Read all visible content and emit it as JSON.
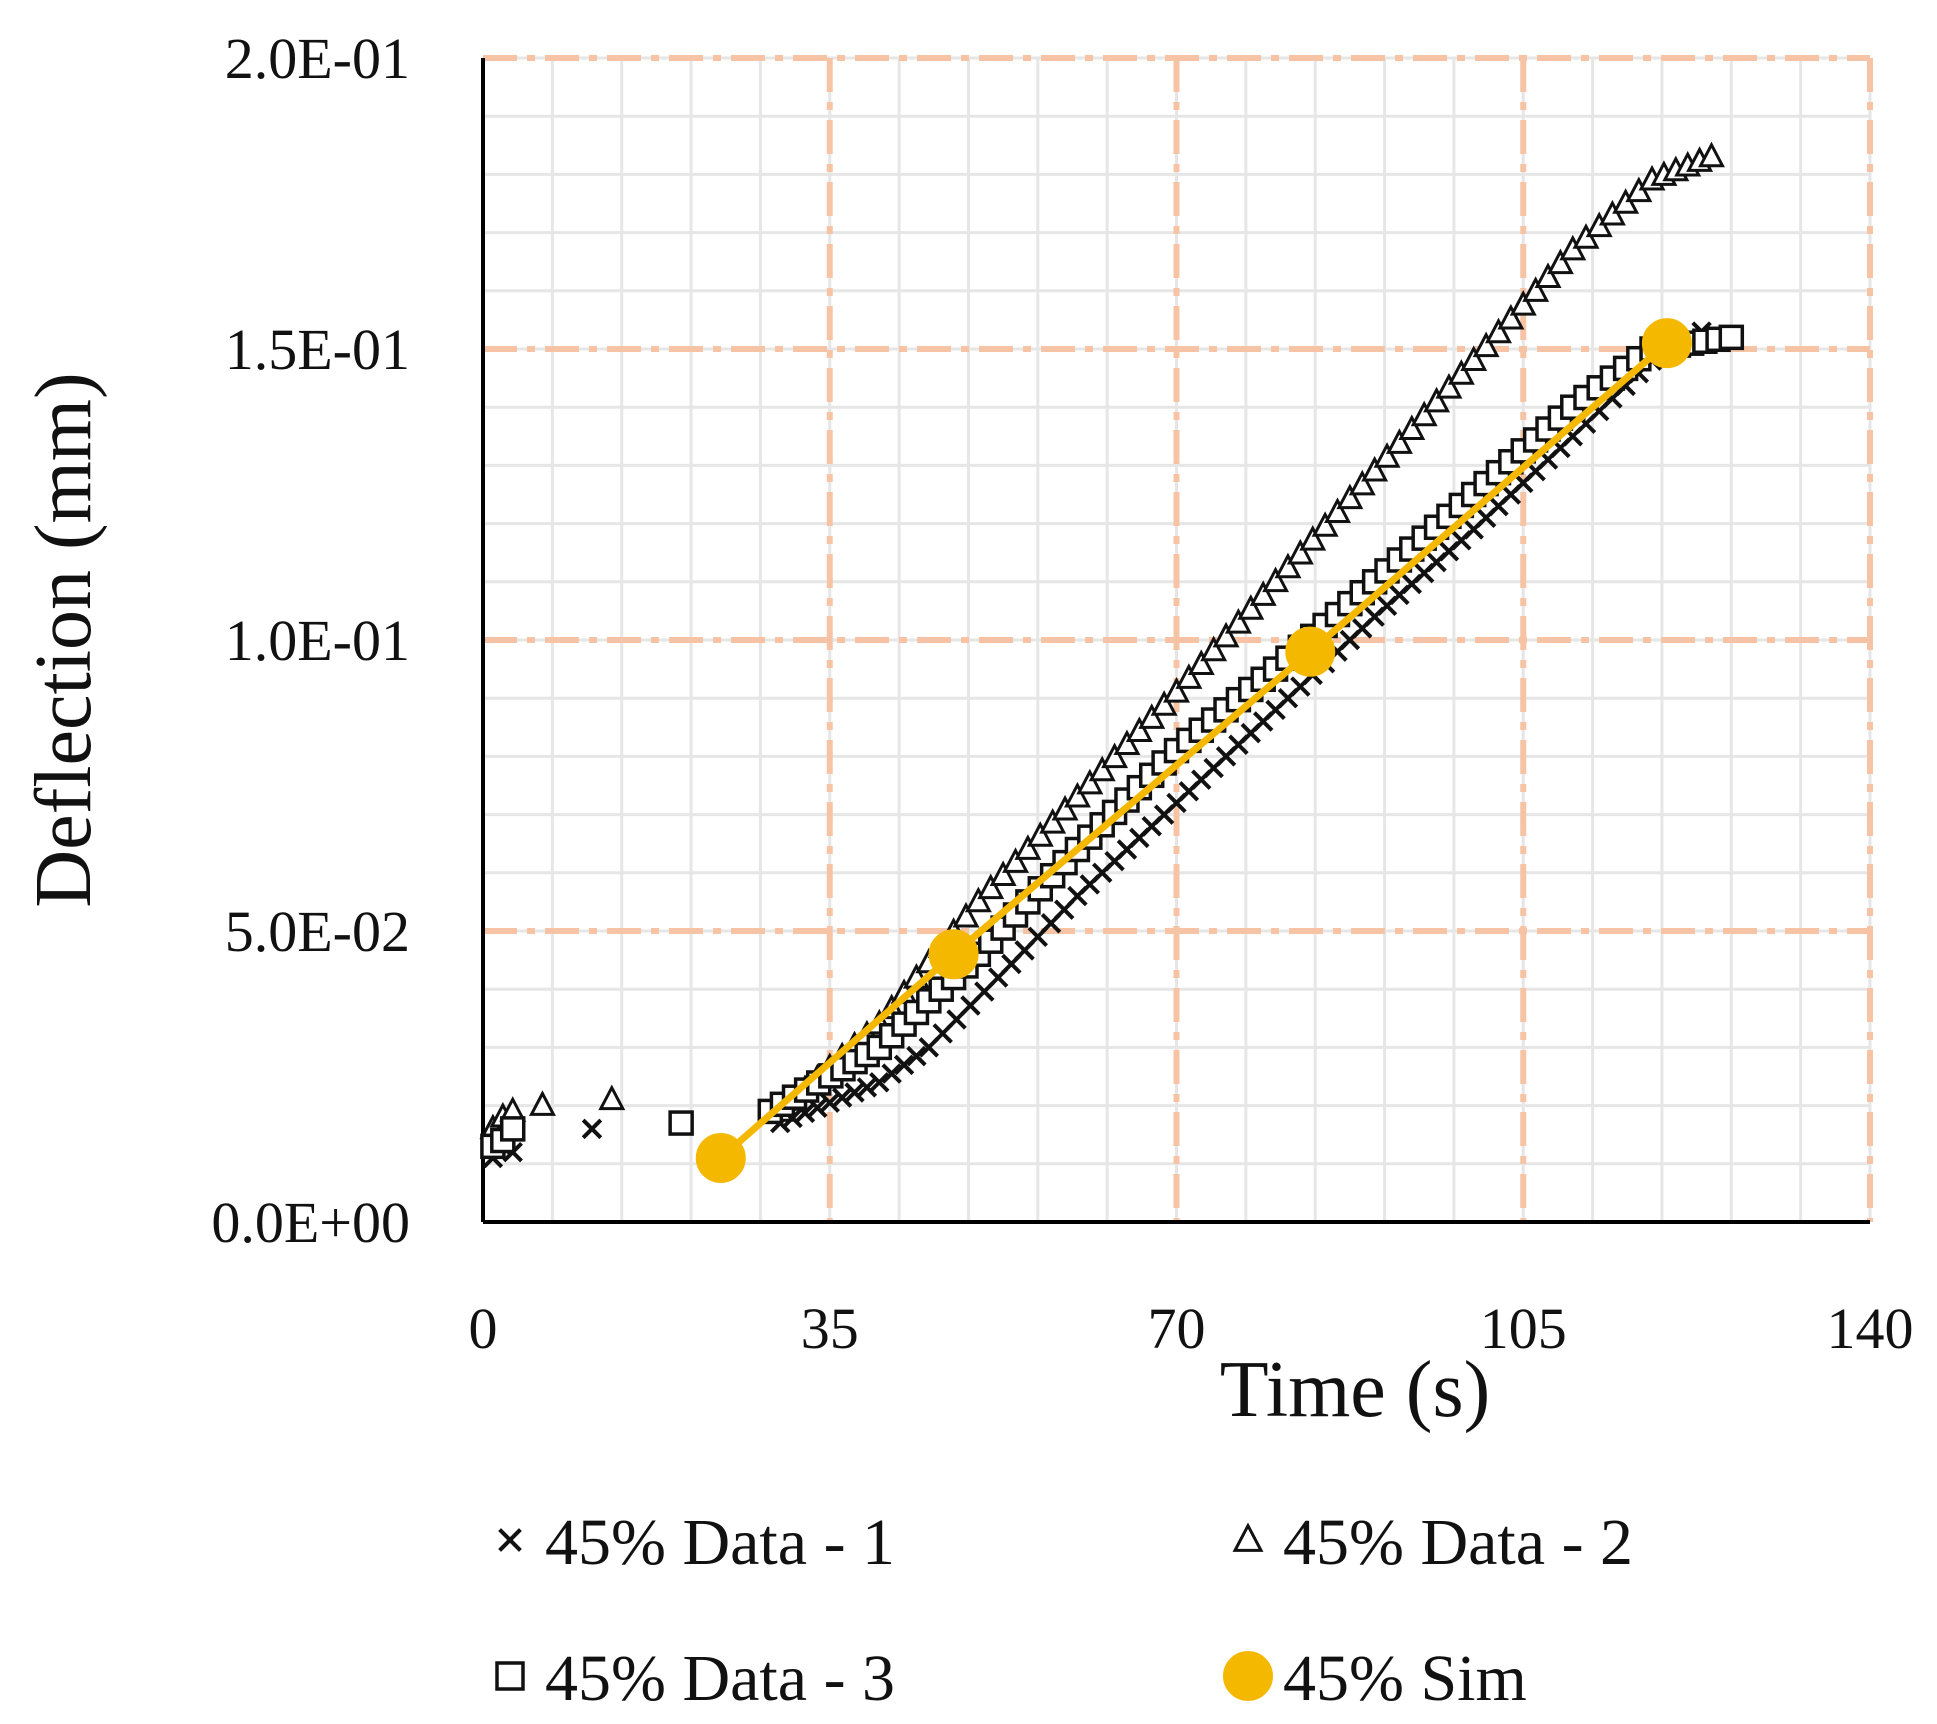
{
  "colors": {
    "major_grid": "#f6c4a4",
    "minor_grid": "#e6e6e6",
    "axis": "#000000",
    "marker": "#111111",
    "sim": "#f5b800"
  },
  "chart_data": {
    "type": "scatter",
    "title": "",
    "xlabel": "Time (s)",
    "ylabel": "Deflection (mm)",
    "xlim": [
      0,
      140
    ],
    "ylim": [
      0,
      0.2
    ],
    "x_ticks": [
      0,
      35,
      70,
      105,
      140
    ],
    "x_tick_labels": [
      "0",
      "35",
      "70",
      "105",
      "140"
    ],
    "y_ticks": [
      0,
      0.05,
      0.1,
      0.15,
      0.2
    ],
    "y_tick_labels": [
      "0.0E+00",
      "5.0E-02",
      "1.0E-01",
      "1.5E-01",
      "2.0E-01"
    ],
    "grid": true,
    "legend_position": "bottom",
    "series": [
      {
        "name": "45% Data - 1",
        "marker": "x",
        "points": [
          [
            1,
            0.011
          ],
          [
            2,
            0.013
          ],
          [
            3,
            0.012
          ],
          [
            11,
            0.016
          ],
          [
            30,
            0.017
          ],
          [
            40,
            0.024
          ],
          [
            45,
            0.03
          ],
          [
            52,
            0.042
          ],
          [
            60,
            0.056
          ],
          [
            70,
            0.072
          ],
          [
            80,
            0.088
          ],
          [
            90,
            0.104
          ],
          [
            100,
            0.119
          ],
          [
            110,
            0.135
          ],
          [
            118,
            0.148
          ],
          [
            123,
            0.153
          ]
        ]
      },
      {
        "name": "45% Data - 2",
        "marker": "triangle",
        "points": [
          [
            1,
            0.016
          ],
          [
            2,
            0.018
          ],
          [
            3,
            0.019
          ],
          [
            6,
            0.02
          ],
          [
            13,
            0.021
          ],
          [
            30,
            0.019
          ],
          [
            40,
            0.034
          ],
          [
            50,
            0.055
          ],
          [
            60,
            0.073
          ],
          [
            70,
            0.091
          ],
          [
            80,
            0.11
          ],
          [
            90,
            0.129
          ],
          [
            100,
            0.148
          ],
          [
            110,
            0.167
          ],
          [
            118,
            0.179
          ],
          [
            124,
            0.183
          ]
        ]
      },
      {
        "name": "45% Data - 3",
        "marker": "square",
        "points": [
          [
            1,
            0.013
          ],
          [
            2,
            0.014
          ],
          [
            3,
            0.016
          ],
          [
            20,
            0.017
          ],
          [
            29,
            0.019
          ],
          [
            40,
            0.03
          ],
          [
            50,
            0.046
          ],
          [
            60,
            0.064
          ],
          [
            70,
            0.081
          ],
          [
            80,
            0.095
          ],
          [
            90,
            0.11
          ],
          [
            100,
            0.125
          ],
          [
            110,
            0.14
          ],
          [
            118,
            0.15
          ],
          [
            126,
            0.152
          ]
        ]
      },
      {
        "name": "45% Sim",
        "marker": "circle",
        "line": true,
        "points": [
          [
            24,
            0.011
          ],
          [
            47.5,
            0.046
          ],
          [
            83.5,
            0.098
          ],
          [
            119.5,
            0.151
          ]
        ]
      }
    ]
  }
}
